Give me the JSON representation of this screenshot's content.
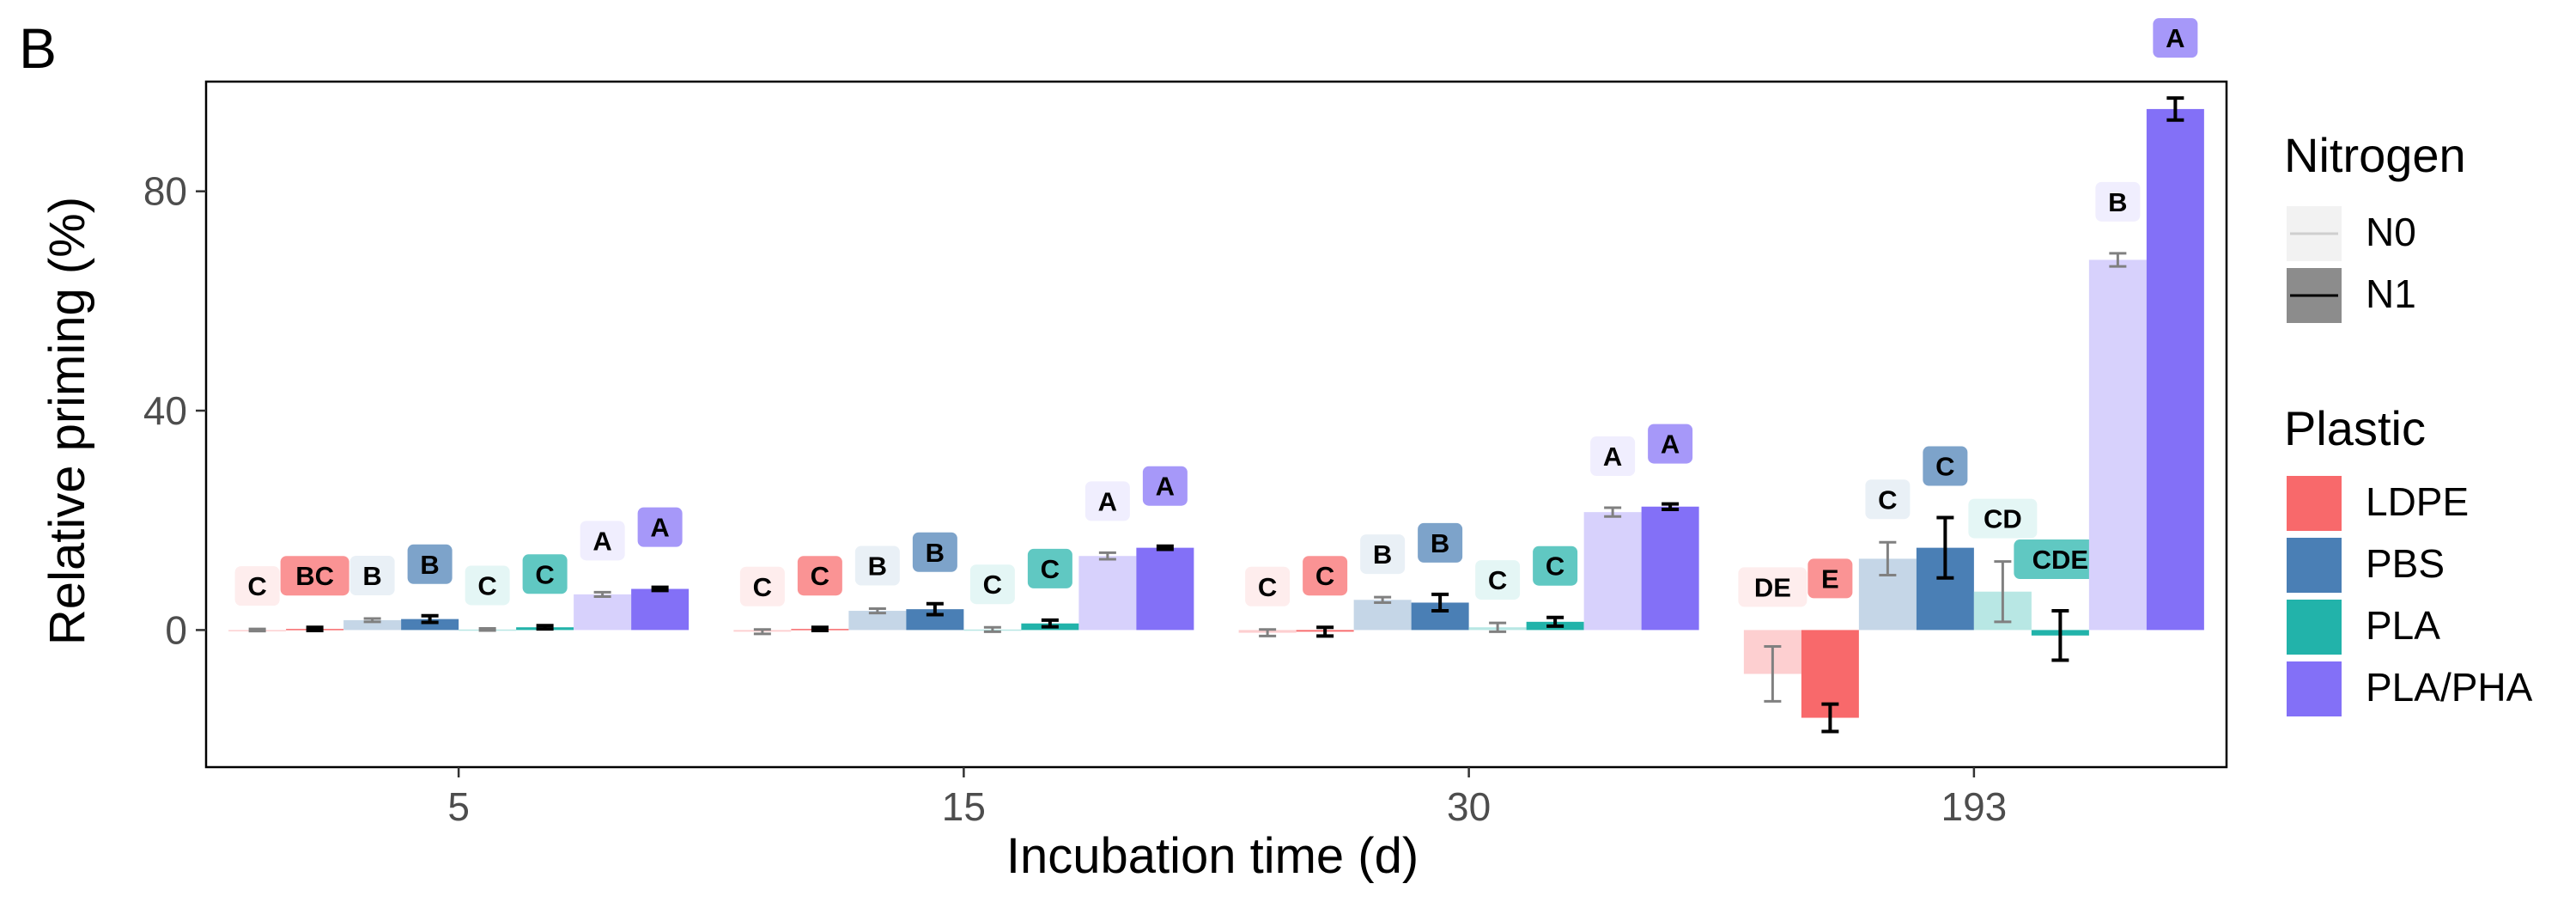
{
  "panel_label": "B",
  "chart_data": {
    "type": "bar",
    "title": "",
    "xlabel": "Incubation time (d)",
    "ylabel": "Relative priming (%)",
    "ylim": [
      -25,
      100
    ],
    "yticks": [
      0,
      40,
      80
    ],
    "grid": false,
    "categories": [
      "5",
      "15",
      "30",
      "193"
    ],
    "legend_placement": "right",
    "legends": {
      "nitrogen": {
        "title": "Nitrogen",
        "entries": [
          "N0",
          "N1"
        ]
      },
      "plastic": {
        "title": "Plastic",
        "entries": [
          "LDPE",
          "PBS",
          "PLA",
          "PLA/PHA"
        ]
      }
    },
    "colors": {
      "LDPE": "#f8696b",
      "PBS": "#4a7fb5",
      "PLA": "#22b3aa",
      "PLA/PHA": "#8370f7"
    },
    "series": [
      {
        "plastic": "LDPE",
        "nitrogen": "N0",
        "values": [
          0,
          -0.3,
          -0.5,
          -8
        ],
        "errors": [
          0.2,
          0.4,
          0.6,
          5
        ],
        "letters": [
          "C",
          "C",
          "C",
          "DE"
        ]
      },
      {
        "plastic": "LDPE",
        "nitrogen": "N1",
        "values": [
          0.2,
          0.2,
          -0.3,
          -16
        ],
        "errors": [
          0.3,
          0.3,
          0.8,
          2.5
        ],
        "letters": [
          "BC",
          "C",
          "C",
          "E"
        ]
      },
      {
        "plastic": "PBS",
        "nitrogen": "N0",
        "values": [
          1.8,
          3.5,
          5.5,
          13
        ],
        "errors": [
          0.3,
          0.4,
          0.5,
          3
        ],
        "letters": [
          "B",
          "B",
          "B",
          "C"
        ]
      },
      {
        "plastic": "PBS",
        "nitrogen": "N1",
        "values": [
          2,
          3.8,
          5,
          15
        ],
        "errors": [
          0.6,
          1,
          1.5,
          5.5
        ],
        "letters": [
          "B",
          "B",
          "B",
          "C"
        ]
      },
      {
        "plastic": "PLA",
        "nitrogen": "N0",
        "values": [
          0.1,
          0.1,
          0.5,
          7
        ],
        "errors": [
          0.2,
          0.4,
          0.8,
          5.5
        ],
        "letters": [
          "C",
          "C",
          "C",
          "CD"
        ]
      },
      {
        "plastic": "PLA",
        "nitrogen": "N1",
        "values": [
          0.5,
          1.2,
          1.5,
          -1
        ],
        "errors": [
          0.3,
          0.6,
          0.8,
          4.5
        ],
        "letters": [
          "C",
          "C",
          "C",
          "CDE"
        ]
      },
      {
        "plastic": "PLA/PHA",
        "nitrogen": "N0",
        "values": [
          6.5,
          13.5,
          21.5,
          67.5
        ],
        "errors": [
          0.4,
          0.6,
          0.8,
          1.2
        ],
        "letters": [
          "A",
          "A",
          "A",
          "B"
        ]
      },
      {
        "plastic": "PLA/PHA",
        "nitrogen": "N1",
        "values": [
          7.5,
          15,
          22.5,
          95
        ],
        "errors": [
          0.3,
          0.3,
          0.5,
          2
        ],
        "letters": [
          "A",
          "A",
          "A",
          "A"
        ]
      }
    ]
  }
}
